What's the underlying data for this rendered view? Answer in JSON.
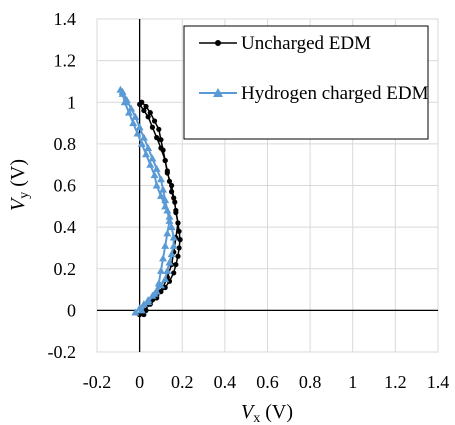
{
  "chart_data": {
    "type": "scatter",
    "xlabel": "V",
    "xlabel_sub": "x",
    "ylabel": "V",
    "ylabel_sub": "y",
    "unit": "(V)",
    "xlim": [
      -0.2,
      1.4
    ],
    "ylim": [
      -0.2,
      1.4
    ],
    "xticks": [
      -0.2,
      0,
      0.2,
      0.4,
      0.6,
      0.8,
      1,
      1.2,
      1.4
    ],
    "yticks": [
      -0.2,
      0,
      0.2,
      0.4,
      0.6,
      0.8,
      1,
      1.2,
      1.4
    ],
    "xtick_labels": [
      "-0.2",
      "0",
      "0.2",
      "0.4",
      "0.6",
      "0.8",
      "1",
      "1.2",
      "1.4"
    ],
    "ytick_labels": [
      "-0.2",
      "0",
      "0.2",
      "0.4",
      "0.6",
      "0.8",
      "1",
      "1.2",
      "1.4"
    ],
    "grid": true,
    "legend_position": "top-right",
    "series": [
      {
        "name": "Uncharged EDM",
        "color": "#000000",
        "marker": "circle",
        "points": [
          [
            0.0,
            -0.02
          ],
          [
            0.02,
            -0.02
          ],
          [
            0.03,
            0.0
          ],
          [
            0.04,
            0.03
          ],
          [
            0.06,
            0.05
          ],
          [
            0.08,
            0.07
          ],
          [
            0.1,
            0.09
          ],
          [
            0.12,
            0.11
          ],
          [
            0.14,
            0.14
          ],
          [
            0.16,
            0.18
          ],
          [
            0.17,
            0.22
          ],
          [
            0.18,
            0.26
          ],
          [
            0.185,
            0.3
          ],
          [
            0.19,
            0.34
          ],
          [
            0.185,
            0.38
          ],
          [
            0.18,
            0.42
          ],
          [
            0.17,
            0.47
          ],
          [
            0.165,
            0.52
          ],
          [
            0.15,
            0.57
          ],
          [
            0.14,
            0.62
          ],
          [
            0.13,
            0.67
          ],
          [
            0.12,
            0.72
          ],
          [
            0.11,
            0.77
          ],
          [
            0.1,
            0.82
          ],
          [
            0.09,
            0.87
          ],
          [
            0.07,
            0.91
          ],
          [
            0.05,
            0.95
          ],
          [
            0.03,
            0.98
          ],
          [
            0.01,
            1.0
          ],
          [
            0.0,
            0.99
          ],
          [
            0.02,
            0.96
          ],
          [
            0.04,
            0.93
          ],
          [
            0.06,
            0.88
          ],
          [
            0.08,
            0.83
          ],
          [
            0.1,
            0.78
          ],
          [
            0.12,
            0.72
          ],
          [
            0.13,
            0.66
          ],
          [
            0.15,
            0.6
          ],
          [
            0.16,
            0.54
          ],
          [
            0.17,
            0.48
          ],
          [
            0.18,
            0.42
          ],
          [
            0.17,
            0.35
          ],
          [
            0.16,
            0.28
          ],
          [
            0.15,
            0.22
          ],
          [
            0.13,
            0.16
          ],
          [
            0.11,
            0.11
          ],
          [
            0.08,
            0.06
          ],
          [
            0.05,
            0.03
          ],
          [
            0.02,
            0.0
          ],
          [
            0.0,
            -0.02
          ]
        ]
      },
      {
        "name": "Hydrogen charged EDM",
        "color": "#5b9bd5",
        "marker": "triangle",
        "points": [
          [
            -0.02,
            -0.01
          ],
          [
            0.0,
            0.01
          ],
          [
            0.02,
            0.03
          ],
          [
            0.04,
            0.05
          ],
          [
            0.06,
            0.07
          ],
          [
            0.08,
            0.09
          ],
          [
            0.1,
            0.12
          ],
          [
            0.12,
            0.15
          ],
          [
            0.13,
            0.19
          ],
          [
            0.14,
            0.23
          ],
          [
            0.15,
            0.27
          ],
          [
            0.16,
            0.31
          ],
          [
            0.16,
            0.35
          ],
          [
            0.15,
            0.4
          ],
          [
            0.14,
            0.45
          ],
          [
            0.12,
            0.5
          ],
          [
            0.1,
            0.55
          ],
          [
            0.08,
            0.6
          ],
          [
            0.07,
            0.65
          ],
          [
            0.05,
            0.7
          ],
          [
            0.03,
            0.75
          ],
          [
            0.01,
            0.8
          ],
          [
            -0.01,
            0.85
          ],
          [
            -0.03,
            0.9
          ],
          [
            -0.05,
            0.95
          ],
          [
            -0.07,
            1.0
          ],
          [
            -0.08,
            1.04
          ],
          [
            -0.09,
            1.06
          ],
          [
            -0.08,
            1.05
          ],
          [
            -0.06,
            1.01
          ],
          [
            -0.04,
            0.97
          ],
          [
            -0.02,
            0.93
          ],
          [
            0.0,
            0.88
          ],
          [
            0.02,
            0.83
          ],
          [
            0.04,
            0.78
          ],
          [
            0.06,
            0.73
          ],
          [
            0.08,
            0.68
          ],
          [
            0.1,
            0.63
          ],
          [
            0.11,
            0.58
          ],
          [
            0.12,
            0.53
          ],
          [
            0.13,
            0.48
          ],
          [
            0.14,
            0.43
          ],
          [
            0.13,
            0.37
          ],
          [
            0.12,
            0.31
          ],
          [
            0.11,
            0.25
          ],
          [
            0.1,
            0.19
          ],
          [
            0.09,
            0.13
          ],
          [
            0.07,
            0.08
          ],
          [
            0.04,
            0.04
          ],
          [
            0.01,
            0.0
          ]
        ]
      }
    ]
  }
}
